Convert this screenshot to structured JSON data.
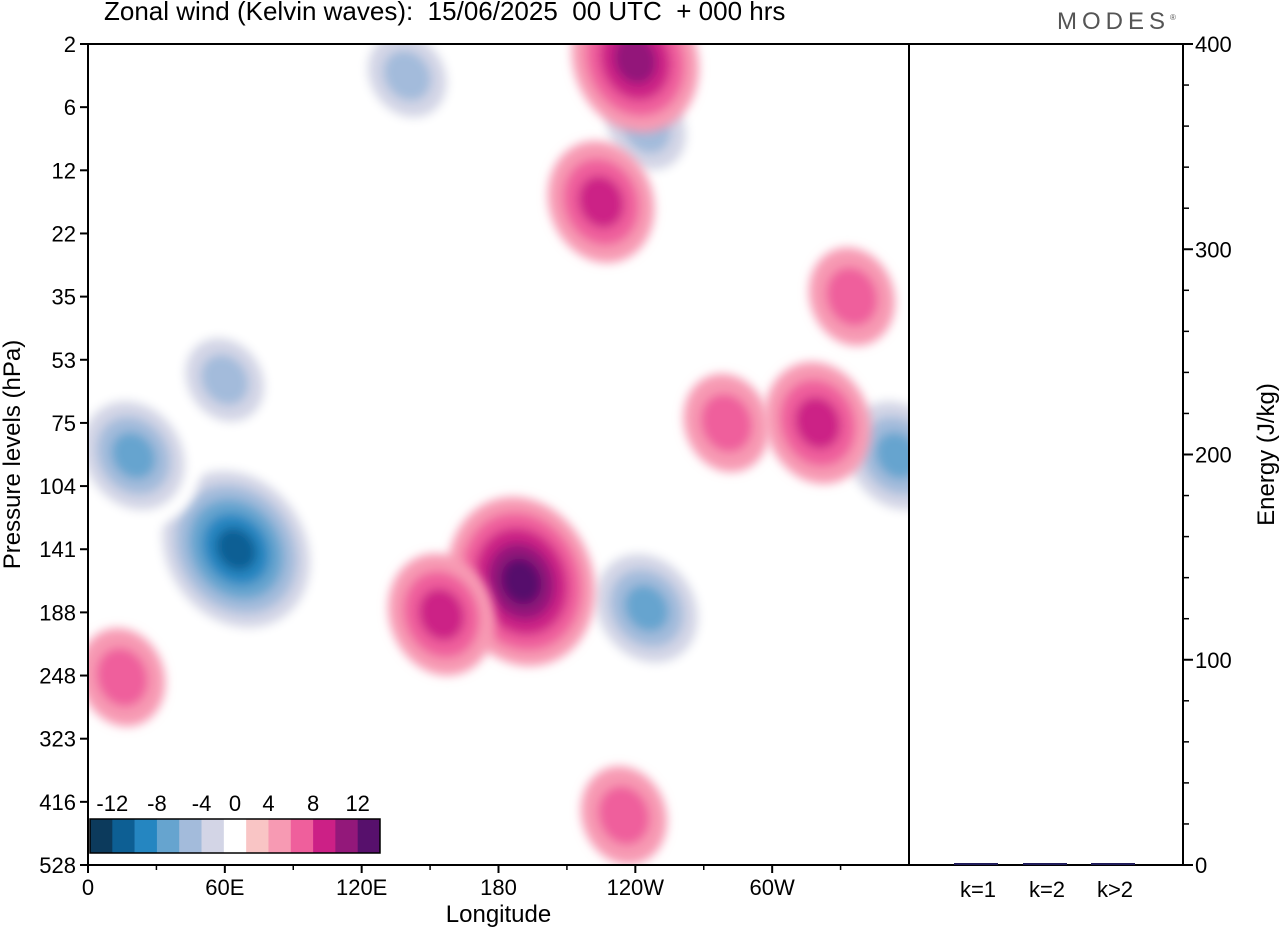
{
  "header": {
    "title": "Zonal wind (Kelvin waves):  15/06/2025  00 UTC  + 000 hrs",
    "brand": "MODES",
    "brand_mark": "®"
  },
  "colors": {
    "scale": [
      "#0c3a5c",
      "#0d5f94",
      "#2586c1",
      "#66a4cf",
      "#a3bbdb",
      "#d3d5e6",
      "#ffffff",
      "#f9c5c5",
      "#f79ab3",
      "#ef5f9c",
      "#cc2086",
      "#93187a",
      "#57106c"
    ],
    "frame": "#000000",
    "bar": "#1f1b5a"
  },
  "chart_data": [
    {
      "type": "heatmap",
      "title": "Zonal wind (Kelvin waves):  15/06/2025  00 UTC  + 000 hrs",
      "xlabel": "Longitude",
      "ylabel": "Pressure levels (hPa)",
      "x_ticks": [
        "0",
        "60E",
        "120E",
        "180",
        "120W",
        "60W"
      ],
      "y_ticks": [
        "2",
        "6",
        "12",
        "22",
        "35",
        "53",
        "75",
        "104",
        "141",
        "188",
        "248",
        "323",
        "416",
        "528"
      ],
      "colorbar": {
        "labels": [
          "-12",
          "-8",
          "-4",
          "0",
          "4",
          "8",
          "12"
        ],
        "levels": [
          -14,
          -12,
          -10,
          -8,
          -6,
          -4,
          -2,
          2,
          4,
          6,
          8,
          10,
          12,
          14
        ]
      },
      "features": [
        {
          "lon": 65,
          "level": 141,
          "value": -12
        },
        {
          "lon": 20,
          "level": 90,
          "value": -8
        },
        {
          "lon": 60,
          "level": 60,
          "value": -6
        },
        {
          "lon": 245,
          "level": 185,
          "value": -8
        },
        {
          "lon": 355,
          "level": 90,
          "value": -8
        },
        {
          "lon": 140,
          "level": 4,
          "value": -6
        },
        {
          "lon": 245,
          "level": 8,
          "value": -6
        },
        {
          "lon": 190,
          "level": 165,
          "value": 10
        },
        {
          "lon": 155,
          "level": 190,
          "value": 6
        },
        {
          "lon": 320,
          "level": 75,
          "value": 6
        },
        {
          "lon": 280,
          "level": 75,
          "value": 4
        },
        {
          "lon": 240,
          "level": 3,
          "value": 8
        },
        {
          "lon": 225,
          "level": 17,
          "value": 6
        },
        {
          "lon": 235,
          "level": 440,
          "value": 4
        },
        {
          "lon": 15,
          "level": 250,
          "value": 4
        },
        {
          "lon": 335,
          "level": 35,
          "value": 4
        }
      ]
    },
    {
      "type": "bar",
      "categories": [
        "k=1",
        "k=2",
        "k>2"
      ],
      "values": [
        0.8,
        0.6,
        0.5
      ],
      "ylabel": "Energy (J/kg)",
      "ylim": [
        0,
        400
      ],
      "y_ticks": [
        "0",
        "100",
        "200",
        "300",
        "400"
      ]
    }
  ]
}
